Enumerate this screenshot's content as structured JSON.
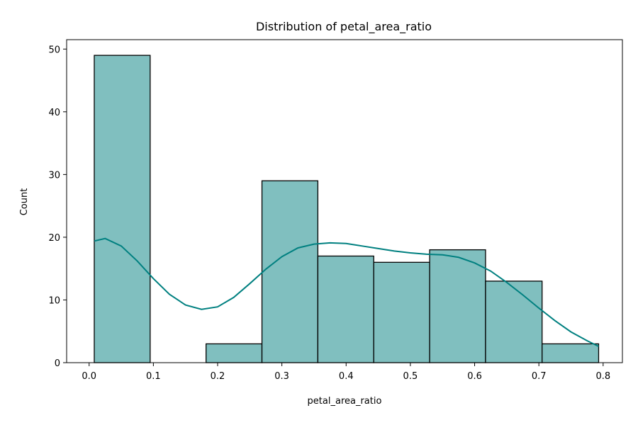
{
  "chart_data": {
    "type": "bar",
    "title": "Distribution of petal_area_ratio",
    "xlabel": "petal_area_ratio",
    "ylabel": "Count",
    "xlim": [
      -0.035,
      0.83
    ],
    "ylim": [
      0,
      51.5
    ],
    "xticks": [
      0.0,
      0.1,
      0.2,
      0.3,
      0.4,
      0.5,
      0.6,
      0.7,
      0.8
    ],
    "xtick_labels": [
      "0.0",
      "0.1",
      "0.2",
      "0.3",
      "0.4",
      "0.5",
      "0.6",
      "0.7",
      "0.8"
    ],
    "yticks": [
      0,
      10,
      20,
      30,
      40,
      50
    ],
    "ytick_labels": [
      "0",
      "10",
      "20",
      "30",
      "40",
      "50"
    ],
    "bins": [
      {
        "x0": 0.008,
        "x1": 0.095,
        "count": 49
      },
      {
        "x0": 0.095,
        "x1": 0.182,
        "count": 0
      },
      {
        "x0": 0.182,
        "x1": 0.269,
        "count": 3
      },
      {
        "x0": 0.269,
        "x1": 0.356,
        "count": 29
      },
      {
        "x0": 0.356,
        "x1": 0.443,
        "count": 17
      },
      {
        "x0": 0.443,
        "x1": 0.53,
        "count": 16
      },
      {
        "x0": 0.53,
        "x1": 0.617,
        "count": 18
      },
      {
        "x0": 0.617,
        "x1": 0.705,
        "count": 13
      },
      {
        "x0": 0.705,
        "x1": 0.793,
        "count": 3
      }
    ],
    "kde": {
      "x": [
        0.008,
        0.025,
        0.05,
        0.075,
        0.1,
        0.125,
        0.15,
        0.175,
        0.2,
        0.225,
        0.25,
        0.275,
        0.3,
        0.325,
        0.35,
        0.375,
        0.4,
        0.425,
        0.45,
        0.475,
        0.5,
        0.525,
        0.55,
        0.575,
        0.6,
        0.625,
        0.65,
        0.675,
        0.7,
        0.725,
        0.75,
        0.775,
        0.793
      ],
      "y": [
        19.4,
        19.8,
        18.6,
        16.2,
        13.4,
        10.9,
        9.2,
        8.5,
        8.9,
        10.4,
        12.6,
        14.9,
        16.9,
        18.3,
        18.9,
        19.1,
        19.0,
        18.6,
        18.2,
        17.8,
        17.5,
        17.3,
        17.2,
        16.8,
        15.9,
        14.6,
        12.8,
        10.8,
        8.7,
        6.7,
        4.9,
        3.5,
        2.6
      ]
    },
    "bar_color": "#80bfbf",
    "bar_edge_color": "#000000",
    "kde_color": "#008080",
    "grid": false,
    "legend": "none"
  }
}
